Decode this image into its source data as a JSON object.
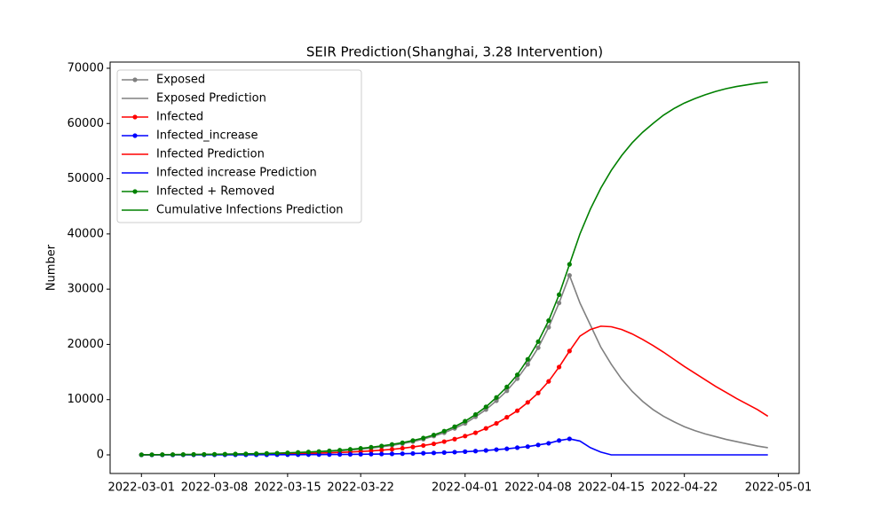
{
  "chart_data": {
    "type": "line",
    "title": "SEIR Prediction(Shanghai, 3.28 Intervention)",
    "y_label": "Number",
    "x": [
      "2022-03-01",
      "2022-03-02",
      "2022-03-03",
      "2022-03-04",
      "2022-03-05",
      "2022-03-06",
      "2022-03-07",
      "2022-03-08",
      "2022-03-09",
      "2022-03-10",
      "2022-03-11",
      "2022-03-12",
      "2022-03-13",
      "2022-03-14",
      "2022-03-15",
      "2022-03-16",
      "2022-03-17",
      "2022-03-18",
      "2022-03-19",
      "2022-03-20",
      "2022-03-21",
      "2022-03-22",
      "2022-03-23",
      "2022-03-24",
      "2022-03-25",
      "2022-03-26",
      "2022-03-27",
      "2022-03-28",
      "2022-03-29",
      "2022-03-30",
      "2022-03-31",
      "2022-04-01",
      "2022-04-02",
      "2022-04-03",
      "2022-04-04",
      "2022-04-05",
      "2022-04-06",
      "2022-04-07",
      "2022-04-08",
      "2022-04-09",
      "2022-04-10",
      "2022-04-11",
      "2022-04-12",
      "2022-04-13",
      "2022-04-14",
      "2022-04-15",
      "2022-04-16",
      "2022-04-17",
      "2022-04-18",
      "2022-04-19",
      "2022-04-20",
      "2022-04-21",
      "2022-04-22",
      "2022-04-23",
      "2022-04-24",
      "2022-04-25",
      "2022-04-26",
      "2022-04-27",
      "2022-04-28",
      "2022-04-29",
      "2022-04-30"
    ],
    "xlim": [
      "2022-02-26",
      "2022-05-03"
    ],
    "xticks": [
      "2022-03-01",
      "2022-03-08",
      "2022-03-15",
      "2022-03-22",
      "2022-04-01",
      "2022-04-08",
      "2022-04-15",
      "2022-04-22",
      "2022-05-01"
    ],
    "ylim": [
      -3370,
      71120
    ],
    "yticks": [
      0,
      10000,
      20000,
      30000,
      40000,
      50000,
      60000,
      70000
    ],
    "legend": "upper left",
    "series": [
      {
        "name": "Exposed",
        "color": "#808080",
        "marker": true,
        "values": [
          15,
          22,
          30,
          40,
          50,
          60,
          75,
          90,
          105,
          125,
          150,
          175,
          210,
          250,
          300,
          360,
          430,
          510,
          610,
          730,
          870,
          1030,
          1220,
          1450,
          1720,
          2030,
          2400,
          2850,
          3400,
          4000,
          4800,
          5700,
          6900,
          8200,
          9800,
          11600,
          13800,
          16400,
          19400,
          23100,
          27500,
          32500,
          null,
          null,
          null,
          null,
          null,
          null,
          null,
          null,
          null,
          null,
          null,
          null,
          null,
          null,
          null,
          null,
          null,
          null,
          null
        ]
      },
      {
        "name": "Exposed Prediction",
        "color": "#808080",
        "marker": false,
        "values": [
          null,
          null,
          null,
          null,
          null,
          null,
          null,
          null,
          null,
          null,
          null,
          null,
          null,
          null,
          null,
          null,
          null,
          null,
          null,
          null,
          null,
          null,
          null,
          null,
          null,
          null,
          null,
          null,
          null,
          null,
          null,
          null,
          null,
          null,
          null,
          null,
          null,
          null,
          null,
          null,
          null,
          32500,
          27500,
          23500,
          19500,
          16400,
          13700,
          11500,
          9700,
          8200,
          7000,
          6000,
          5100,
          4400,
          3800,
          3300,
          2800,
          2400,
          2000,
          1600,
          1300
        ]
      },
      {
        "name": "Infected",
        "color": "#ff0000",
        "marker": true,
        "values": [
          10,
          15,
          20,
          25,
          30,
          38,
          45,
          55,
          65,
          80,
          95,
          110,
          130,
          155,
          185,
          220,
          260,
          310,
          370,
          440,
          520,
          610,
          720,
          850,
          1000,
          1200,
          1430,
          1700,
          2000,
          2400,
          2850,
          3400,
          4000,
          4800,
          5700,
          6800,
          8000,
          9500,
          11200,
          13300,
          15900,
          18800,
          null,
          null,
          null,
          null,
          null,
          null,
          null,
          null,
          null,
          null,
          null,
          null,
          null,
          null,
          null,
          null,
          null,
          null,
          null
        ]
      },
      {
        "name": "Infected_increase",
        "color": "#0000ff",
        "marker": true,
        "values": [
          2,
          3,
          4,
          5,
          6,
          7,
          8,
          10,
          12,
          14,
          17,
          20,
          24,
          28,
          33,
          39,
          46,
          55,
          65,
          77,
          90,
          110,
          130,
          150,
          180,
          210,
          250,
          300,
          350,
          420,
          490,
          580,
          680,
          800,
          950,
          1100,
          1300,
          1500,
          1800,
          2100,
          2600,
          2900,
          null,
          null,
          null,
          null,
          null,
          null,
          null,
          null,
          null,
          null,
          null,
          null,
          null,
          null,
          null,
          null,
          null,
          null,
          null
        ]
      },
      {
        "name": "Infected Prediction",
        "color": "#ff0000",
        "marker": false,
        "values": [
          null,
          null,
          null,
          null,
          null,
          null,
          null,
          null,
          null,
          null,
          null,
          null,
          null,
          null,
          null,
          null,
          null,
          null,
          null,
          null,
          null,
          null,
          null,
          null,
          null,
          null,
          null,
          null,
          null,
          null,
          null,
          null,
          null,
          null,
          null,
          null,
          null,
          null,
          null,
          null,
          null,
          18800,
          21500,
          22700,
          23300,
          23200,
          22700,
          21900,
          20900,
          19800,
          18600,
          17300,
          16000,
          14800,
          13600,
          12400,
          11300,
          10200,
          9200,
          8200,
          7000
        ]
      },
      {
        "name": "Infected increase Prediction",
        "color": "#0000ff",
        "marker": false,
        "values": [
          null,
          null,
          null,
          null,
          null,
          null,
          null,
          null,
          null,
          null,
          null,
          null,
          null,
          null,
          null,
          null,
          null,
          null,
          null,
          null,
          null,
          null,
          null,
          null,
          null,
          null,
          null,
          null,
          null,
          null,
          null,
          null,
          null,
          null,
          null,
          null,
          null,
          null,
          null,
          null,
          null,
          2900,
          2500,
          1300,
          500,
          0,
          0,
          0,
          0,
          0,
          0,
          0,
          0,
          0,
          0,
          0,
          0,
          0,
          0,
          0,
          0
        ]
      },
      {
        "name": "Infected + Removed",
        "color": "#008000",
        "marker": true,
        "values": [
          20,
          30,
          40,
          50,
          65,
          80,
          95,
          115,
          135,
          160,
          190,
          220,
          260,
          310,
          370,
          440,
          520,
          610,
          720,
          850,
          1000,
          1180,
          1380,
          1620,
          1900,
          2200,
          2600,
          3050,
          3600,
          4300,
          5100,
          6100,
          7300,
          8700,
          10400,
          12300,
          14500,
          17300,
          20500,
          24300,
          29000,
          34500,
          null,
          null,
          null,
          null,
          null,
          null,
          null,
          null,
          null,
          null,
          null,
          null,
          null,
          null,
          null,
          null,
          null,
          null,
          null
        ]
      },
      {
        "name": "Cumulative Infections Prediction",
        "color": "#008000",
        "marker": false,
        "values": [
          null,
          null,
          null,
          null,
          null,
          null,
          null,
          null,
          null,
          null,
          null,
          null,
          null,
          null,
          null,
          null,
          null,
          null,
          null,
          null,
          null,
          null,
          null,
          null,
          null,
          null,
          null,
          null,
          null,
          null,
          null,
          null,
          null,
          null,
          null,
          null,
          null,
          null,
          null,
          null,
          null,
          34500,
          40000,
          44500,
          48300,
          51500,
          54200,
          56500,
          58400,
          60000,
          61500,
          62700,
          63700,
          64500,
          65200,
          65800,
          66300,
          66700,
          67000,
          67300,
          67500
        ]
      }
    ]
  }
}
